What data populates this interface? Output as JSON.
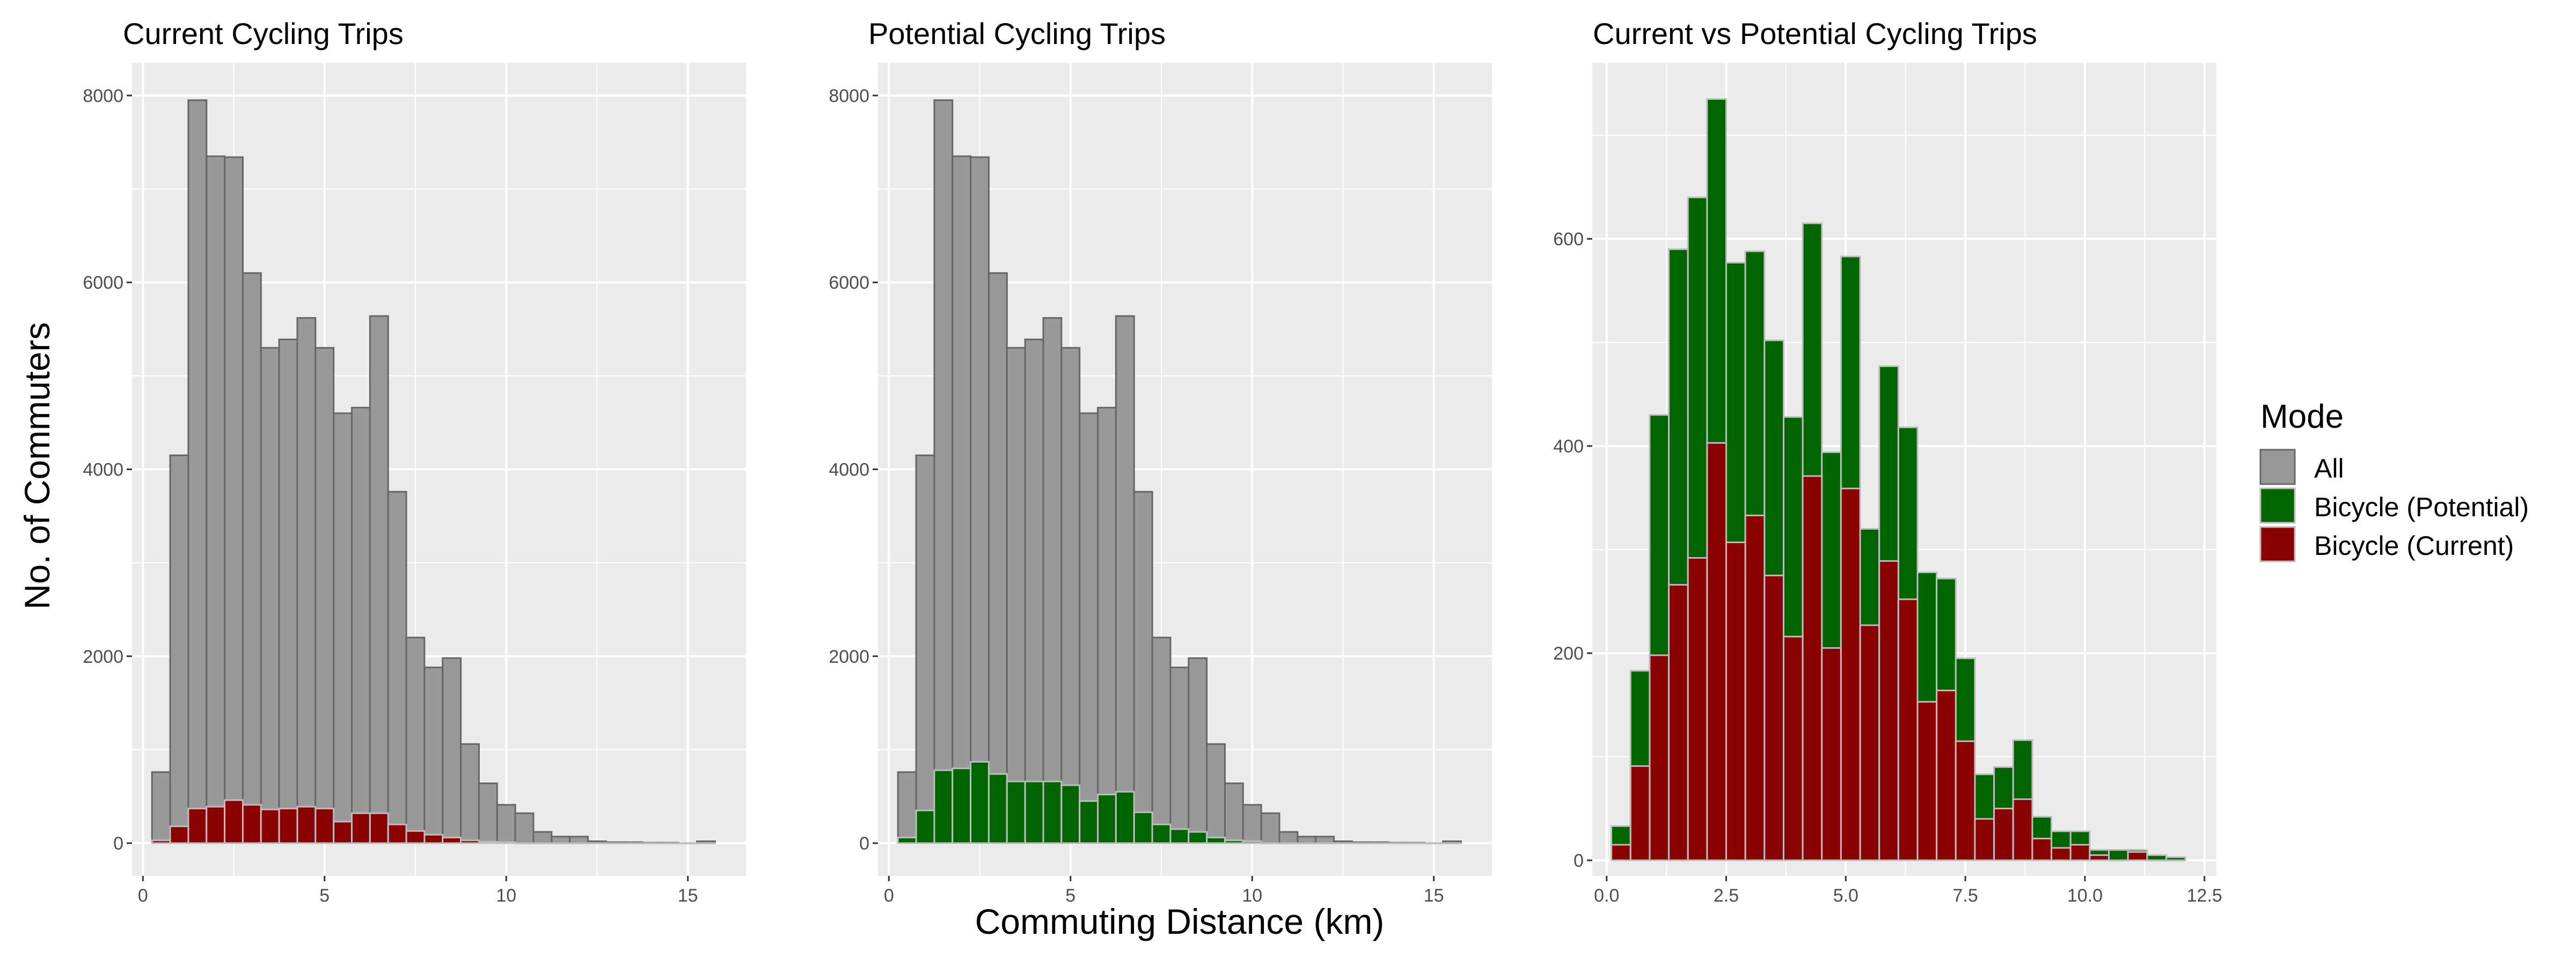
{
  "figure": {
    "xlabel": "Commuting Distance (km)",
    "ylabel": "No. of Commuters"
  },
  "legend": {
    "title": "Mode",
    "items": [
      {
        "label": "All",
        "color": "#999999"
      },
      {
        "label": "Bicycle (Potential)",
        "color": "#006400"
      },
      {
        "label": "Bicycle (Current)",
        "color": "#8b0000"
      }
    ]
  },
  "colors": {
    "panel_bg": "#ebebeb",
    "grid": "#ffffff",
    "bar_outline": "#666666",
    "bar_outline_light": "#bdbdbd",
    "all": "#999999",
    "potential": "#006400",
    "current": "#8b0000"
  },
  "chart_data": [
    {
      "type": "bar",
      "title": "Current Cycling Trips",
      "xlim": [
        -0.3,
        16.6
      ],
      "ylim": [
        -350,
        8350
      ],
      "x_ticks": [
        0,
        5,
        10,
        15
      ],
      "x_tick_labels": [
        "0",
        "5",
        "10",
        "15"
      ],
      "y_ticks": [
        0,
        2000,
        4000,
        6000,
        8000
      ],
      "y_tick_labels": [
        "0",
        "2000",
        "4000",
        "6000",
        "8000"
      ],
      "bin_width": 0.5,
      "bin_centers": [
        0.5,
        1.0,
        1.5,
        2.0,
        2.5,
        3.0,
        3.5,
        4.0,
        4.5,
        5.0,
        5.5,
        6.0,
        6.5,
        7.0,
        7.5,
        8.0,
        8.5,
        9.0,
        9.5,
        10.0,
        10.5,
        11.0,
        11.5,
        12.0,
        12.5,
        13.0,
        13.5,
        14.0,
        14.5,
        15.0,
        15.5
      ],
      "series": [
        {
          "name": "All",
          "color": "#999999",
          "values": [
            760,
            4150,
            7950,
            7350,
            7340,
            6100,
            5300,
            5390,
            5620,
            5300,
            4600,
            4660,
            5640,
            3760,
            2200,
            1880,
            1980,
            1060,
            640,
            410,
            320,
            120,
            70,
            70,
            20,
            10,
            10,
            5,
            5,
            0,
            20
          ]
        },
        {
          "name": "Bicycle (Current)",
          "color": "#8b0000",
          "values": [
            30,
            180,
            370,
            390,
            460,
            410,
            360,
            370,
            390,
            370,
            230,
            320,
            320,
            200,
            130,
            90,
            60,
            30,
            15,
            10,
            0,
            0,
            0,
            0,
            0,
            0,
            0,
            0,
            0,
            0,
            0
          ]
        }
      ]
    },
    {
      "type": "bar",
      "title": "Potential Cycling Trips",
      "xlim": [
        -0.3,
        16.6
      ],
      "ylim": [
        -350,
        8350
      ],
      "x_ticks": [
        0,
        5,
        10,
        15
      ],
      "x_tick_labels": [
        "0",
        "5",
        "10",
        "15"
      ],
      "y_ticks": [
        0,
        2000,
        4000,
        6000,
        8000
      ],
      "y_tick_labels": [
        "0",
        "2000",
        "4000",
        "6000",
        "8000"
      ],
      "bin_width": 0.5,
      "bin_centers": [
        0.5,
        1.0,
        1.5,
        2.0,
        2.5,
        3.0,
        3.5,
        4.0,
        4.5,
        5.0,
        5.5,
        6.0,
        6.5,
        7.0,
        7.5,
        8.0,
        8.5,
        9.0,
        9.5,
        10.0,
        10.5,
        11.0,
        11.5,
        12.0,
        12.5,
        13.0,
        13.5,
        14.0,
        14.5,
        15.0,
        15.5
      ],
      "series": [
        {
          "name": "All",
          "color": "#999999",
          "values": [
            760,
            4150,
            7950,
            7350,
            7340,
            6100,
            5300,
            5390,
            5620,
            5300,
            4600,
            4660,
            5640,
            3760,
            2200,
            1880,
            1980,
            1060,
            640,
            410,
            320,
            120,
            70,
            70,
            20,
            10,
            10,
            5,
            5,
            0,
            20
          ]
        },
        {
          "name": "Bicycle (Potential)",
          "color": "#006400",
          "values": [
            60,
            350,
            780,
            800,
            870,
            740,
            660,
            660,
            660,
            620,
            450,
            520,
            550,
            330,
            200,
            150,
            120,
            60,
            30,
            20,
            0,
            0,
            0,
            0,
            0,
            0,
            0,
            0,
            0,
            0,
            0
          ]
        }
      ]
    },
    {
      "type": "bar",
      "title": "Current vs Potential Cycling Trips",
      "xlim": [
        -0.3,
        12.75
      ],
      "ylim": [
        -15,
        770
      ],
      "x_ticks": [
        0,
        2.5,
        5.0,
        7.5,
        10.0,
        12.5
      ],
      "x_tick_labels": [
        "0.0",
        "2.5",
        "5.0",
        "7.5",
        "10.0",
        "12.5"
      ],
      "y_ticks": [
        0,
        200,
        400,
        600
      ],
      "y_tick_labels": [
        "0",
        "200",
        "400",
        "600"
      ],
      "bin_width": 0.4,
      "bin_centers": [
        0.3,
        0.7,
        1.1,
        1.5,
        1.9,
        2.3,
        2.7,
        3.1,
        3.5,
        3.9,
        4.3,
        4.7,
        5.1,
        5.5,
        5.9,
        6.3,
        6.7,
        7.1,
        7.5,
        7.9,
        8.3,
        8.7,
        9.1,
        9.5,
        9.9,
        10.3,
        10.7,
        11.1,
        11.5,
        11.9
      ],
      "series": [
        {
          "name": "Bicycle (Potential)",
          "color": "#006400",
          "values": [
            33,
            183,
            430,
            590,
            640,
            735,
            577,
            588,
            502,
            428,
            615,
            394,
            583,
            320,
            477,
            418,
            278,
            272,
            195,
            83,
            90,
            116,
            42,
            28,
            28,
            10,
            10,
            10,
            5,
            3
          ]
        },
        {
          "name": "Bicycle (Current)",
          "color": "#8b0000",
          "values": [
            15,
            91,
            198,
            266,
            292,
            403,
            307,
            333,
            275,
            216,
            371,
            205,
            359,
            227,
            289,
            252,
            153,
            164,
            115,
            40,
            50,
            59,
            21,
            12,
            15,
            5,
            0,
            8,
            0,
            0
          ]
        }
      ]
    }
  ]
}
